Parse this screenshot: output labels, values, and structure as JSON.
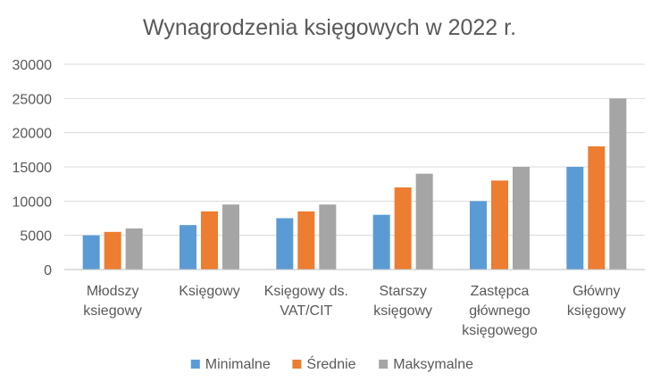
{
  "chart_data": {
    "type": "bar",
    "title": "Wynagrodzenia księgowych w 2022 r.",
    "xlabel": "",
    "ylabel": "",
    "ylim": [
      0,
      30000
    ],
    "yticks": [
      "0",
      "5000",
      "10000",
      "15000",
      "20000",
      "25000",
      "30000"
    ],
    "grid": true,
    "legend_position": "bottom",
    "categories": [
      [
        "Młodszy",
        "ksiegowy"
      ],
      [
        "Księgowy"
      ],
      [
        "Księgowy ds.",
        "VAT/CIT"
      ],
      [
        "Starszy",
        "księgowy"
      ],
      [
        "Zastępca",
        "głównego",
        "księgowego"
      ],
      [
        "Główny",
        "księgowy"
      ]
    ],
    "series": [
      {
        "name": "Minimalne",
        "color": "#5b9bd5",
        "values": [
          5000,
          6500,
          7500,
          8000,
          10000,
          15000
        ]
      },
      {
        "name": "Średnie",
        "color": "#ed7d31",
        "values": [
          5500,
          8500,
          8500,
          12000,
          13000,
          18000
        ]
      },
      {
        "name": "Maksymalne",
        "color": "#a5a5a5",
        "values": [
          6000,
          9500,
          9500,
          14000,
          15000,
          25000
        ]
      }
    ]
  }
}
